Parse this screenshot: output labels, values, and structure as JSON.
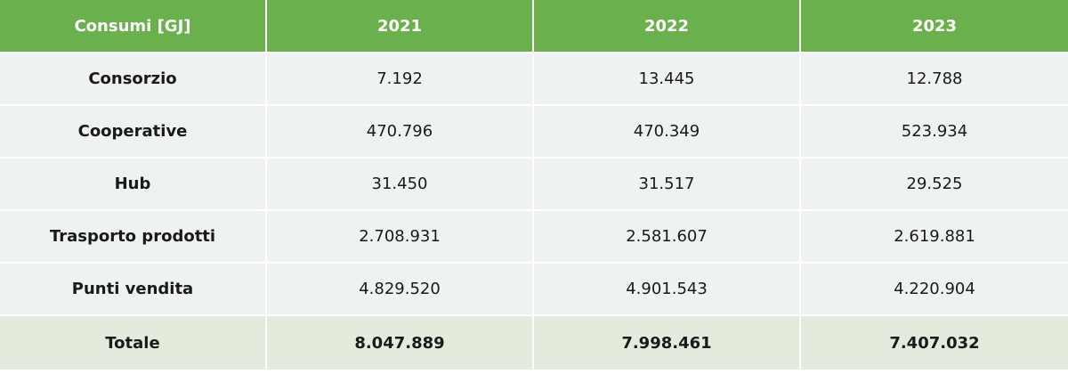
{
  "table": {
    "header": [
      "Consumi [GJ]",
      "2021",
      "2022",
      "2023"
    ],
    "rows": [
      {
        "label": "Consorzio",
        "values": [
          "7.192",
          "13.445",
          "12.788"
        ]
      },
      {
        "label": "Cooperative",
        "values": [
          "470.796",
          "470.349",
          "523.934"
        ]
      },
      {
        "label": "Hub",
        "values": [
          "31.450",
          "31.517",
          "29.525"
        ]
      },
      {
        "label": "Trasporto prodotti",
        "values": [
          "2.708.931",
          "2.581.607",
          "2.619.881"
        ]
      },
      {
        "label": "Punti vendita",
        "values": [
          "4.829.520",
          "4.901.543",
          "4.220.904"
        ]
      }
    ],
    "total": {
      "label": "Totale",
      "values": [
        "8.047.889",
        "7.998.461",
        "7.407.032"
      ]
    }
  },
  "colors": {
    "header_bg": "#6ab04c",
    "row_bg": "#eef2f3",
    "total_bg": "#e3ecdc"
  }
}
